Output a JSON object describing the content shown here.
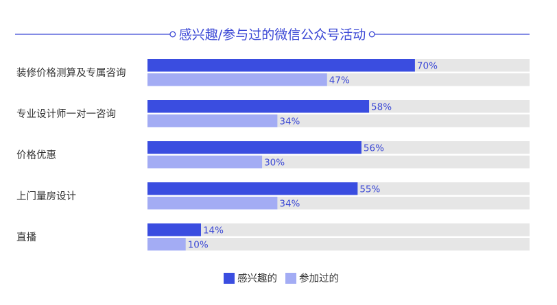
{
  "chart_data": {
    "type": "bar",
    "orientation": "horizontal",
    "title": "感兴趣/参与过的微信公众号活动",
    "categories": [
      "装修价格测算及专属咨询",
      "专业设计师一对一咨询",
      "价格优惠",
      "上门量房设计",
      "直播"
    ],
    "series": [
      {
        "name": "感兴趣的",
        "values": [
          70,
          58,
          56,
          55,
          14
        ],
        "labels": [
          "70%",
          "58%",
          "56%",
          "55%",
          "14%"
        ]
      },
      {
        "name": "参加过的",
        "values": [
          47,
          34,
          30,
          34,
          10
        ],
        "labels": [
          "47%",
          "34%",
          "30%",
          "34%",
          "10%"
        ]
      }
    ],
    "xlim": [
      0,
      100
    ],
    "unit": "%",
    "grid": false,
    "legend_position": "bottom",
    "colors": {
      "title": "#3a47d5",
      "series_1": "#3a4de0",
      "series_2": "#a3acf4",
      "track": "#e6e6e6",
      "category_text": "#333333",
      "legend_text": "#333333"
    }
  }
}
